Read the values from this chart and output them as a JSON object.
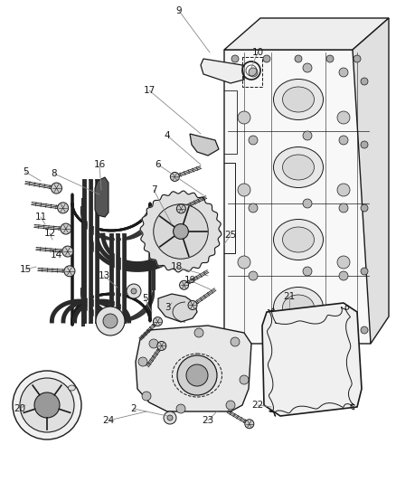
{
  "bg_color": "#ffffff",
  "fig_width": 4.38,
  "fig_height": 5.33,
  "dpi": 100,
  "line_color": "#1a1a1a",
  "label_color": "#1a1a1a",
  "leader_color": "#888888",
  "label_fontsize": 7.5,
  "belt_color": "#333333",
  "part_fill": "#f5f5f5",
  "part_edge": "#222222",
  "screw_fill": "#555555",
  "screw_edge": "#111111"
}
